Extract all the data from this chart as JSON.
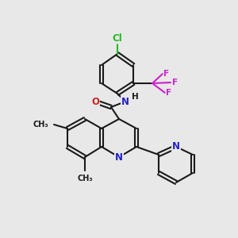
{
  "background_color": "#e8e8e8",
  "bond_color": "#1a1a1a",
  "atom_colors": {
    "Cl": "#22bb22",
    "F": "#cc22cc",
    "N": "#2222cc",
    "O": "#cc2222",
    "C": "#1a1a1a",
    "H": "#1a1a1a"
  },
  "figsize": [
    3.0,
    3.0
  ],
  "dpi": 100
}
